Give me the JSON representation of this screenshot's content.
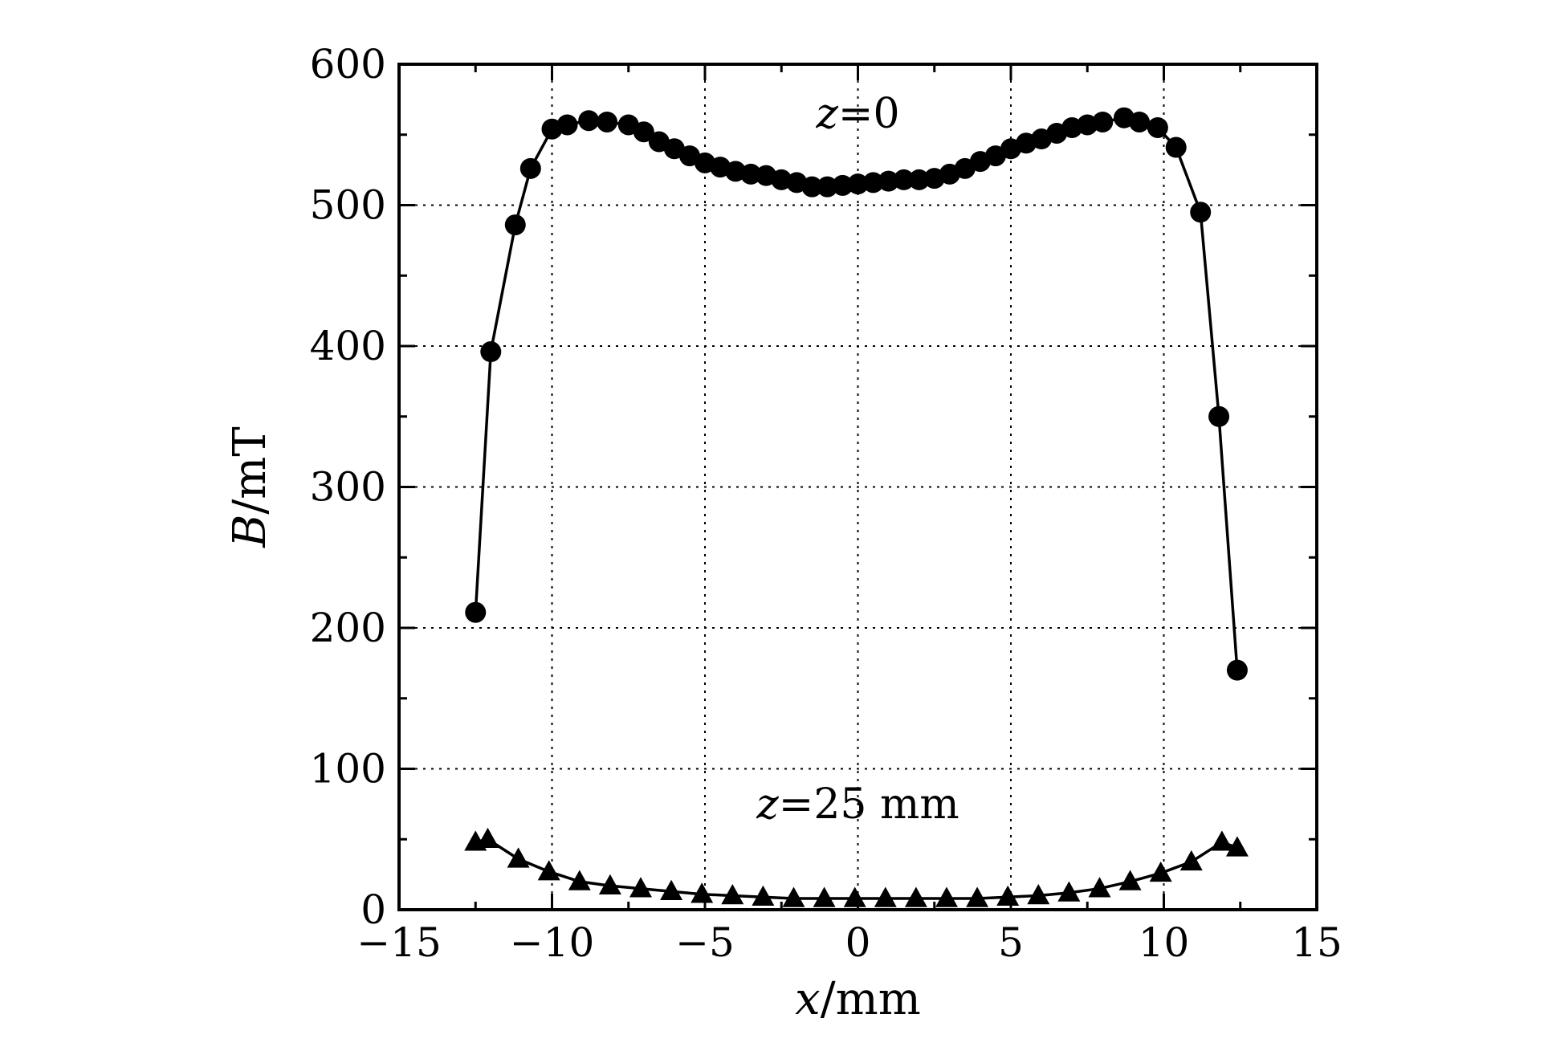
{
  "chart_data": {
    "type": "line",
    "xlabel": {
      "var": "x",
      "unit": "/mm"
    },
    "ylabel": {
      "var": "B",
      "unit": "/mT"
    },
    "xlim": [
      -15,
      15
    ],
    "ylim": [
      0,
      600
    ],
    "xticks": [
      -15,
      -10,
      -5,
      0,
      5,
      10,
      15
    ],
    "xtick_labels": [
      "−15",
      "−10",
      "−5",
      "0",
      "5",
      "10",
      "15"
    ],
    "yticks": [
      0,
      100,
      200,
      300,
      400,
      500,
      600
    ],
    "ytick_labels": [
      "0",
      "100",
      "200",
      "300",
      "400",
      "500",
      "600"
    ],
    "grid": true,
    "annotations": [
      {
        "var": "z",
        "text": "=0",
        "x": 0,
        "y": 555
      },
      {
        "var": "z",
        "text": "=25 mm",
        "x": 0,
        "y": 65
      }
    ],
    "series": [
      {
        "marker": "circle",
        "x": [
          -12.5,
          -12.0,
          -11.2,
          -10.7,
          -10.0,
          -9.5,
          -8.8,
          -8.2,
          -7.5,
          -7.0,
          -6.5,
          -6.0,
          -5.5,
          -5.0,
          -4.5,
          -4.0,
          -3.5,
          -3.0,
          -2.5,
          -2.0,
          -1.5,
          -1.0,
          -0.5,
          0.0,
          0.5,
          1.0,
          1.5,
          2.0,
          2.5,
          3.0,
          3.5,
          4.0,
          4.5,
          5.0,
          5.5,
          6.0,
          6.5,
          7.0,
          7.5,
          8.0,
          8.7,
          9.2,
          9.8,
          10.4,
          11.2,
          11.8,
          12.4
        ],
        "y": [
          211,
          396,
          486,
          526,
          554,
          557,
          560,
          559,
          557,
          552,
          545,
          540,
          535,
          530,
          527,
          524,
          522,
          521,
          518,
          516,
          513,
          513,
          514,
          515,
          516,
          517,
          518,
          518,
          519,
          522,
          526,
          531,
          535,
          540,
          544,
          547,
          551,
          555,
          557,
          559,
          562,
          559,
          555,
          541,
          495,
          350,
          170
        ]
      },
      {
        "marker": "triangle",
        "x": [
          -12.5,
          -12.1,
          -11.1,
          -10.1,
          -9.1,
          -8.1,
          -7.1,
          -6.1,
          -5.1,
          -4.1,
          -3.1,
          -2.1,
          -1.1,
          -0.1,
          0.9,
          1.9,
          2.9,
          3.9,
          4.9,
          5.9,
          6.9,
          7.9,
          8.9,
          9.9,
          10.9,
          11.9,
          12.4
        ],
        "y": [
          48,
          50,
          36,
          27,
          20,
          17,
          15,
          13,
          11,
          10,
          9,
          8,
          8,
          8,
          8,
          8,
          8,
          8,
          9,
          10,
          12,
          15,
          20,
          26,
          34,
          48,
          44
        ]
      }
    ]
  }
}
